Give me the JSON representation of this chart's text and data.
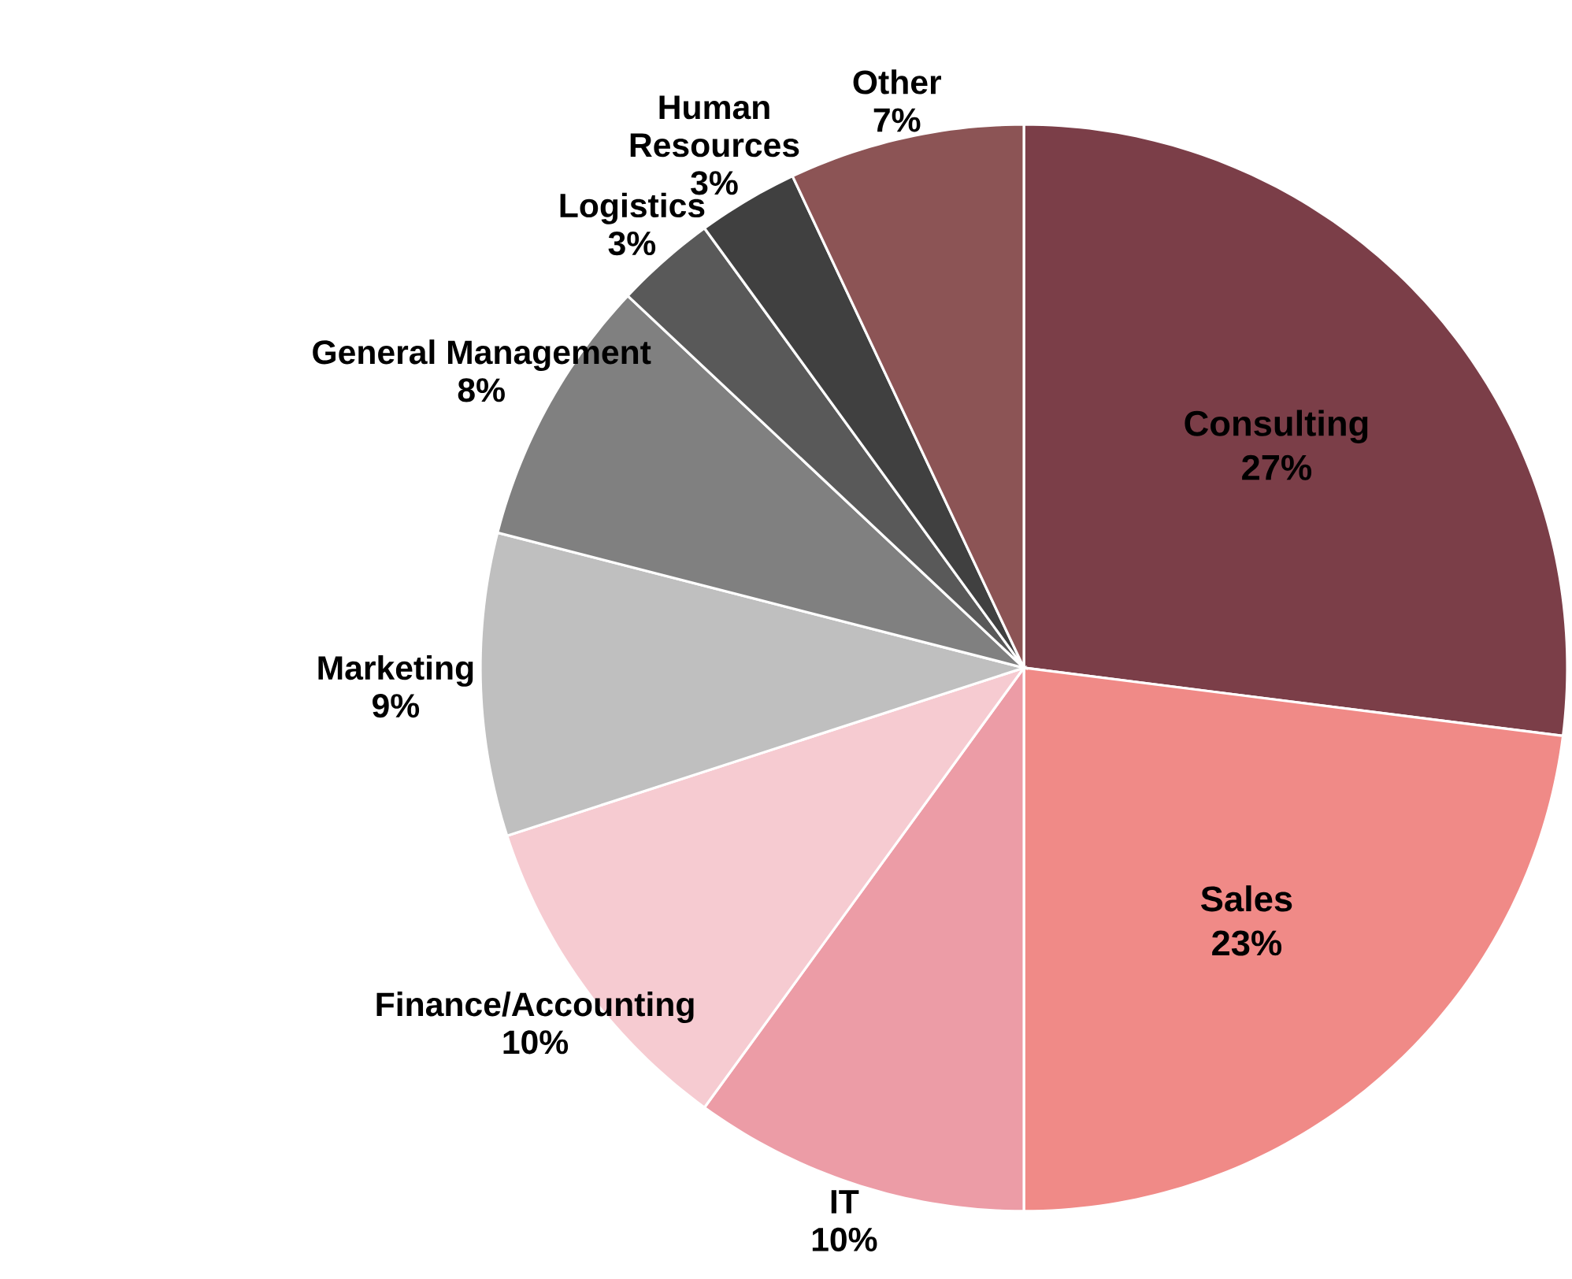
{
  "chart_data": {
    "type": "pie",
    "categories": [
      "Consulting",
      "Sales",
      "IT",
      "Finance/Accounting",
      "Marketing",
      "General Management",
      "Logistics",
      "Human Resources",
      "Other"
    ],
    "values": [
      27,
      23,
      10,
      10,
      9,
      8,
      3,
      3,
      7
    ],
    "value_labels": [
      "27%",
      "23%",
      "10%",
      "10%",
      "9%",
      "8%",
      "3%",
      "3%",
      "7%"
    ],
    "colors": [
      "#7b3e48",
      "#f08a87",
      "#ec9ca6",
      "#f6cbd1",
      "#bfbfbf",
      "#808080",
      "#595959",
      "#404040",
      "#8c5455"
    ]
  }
}
